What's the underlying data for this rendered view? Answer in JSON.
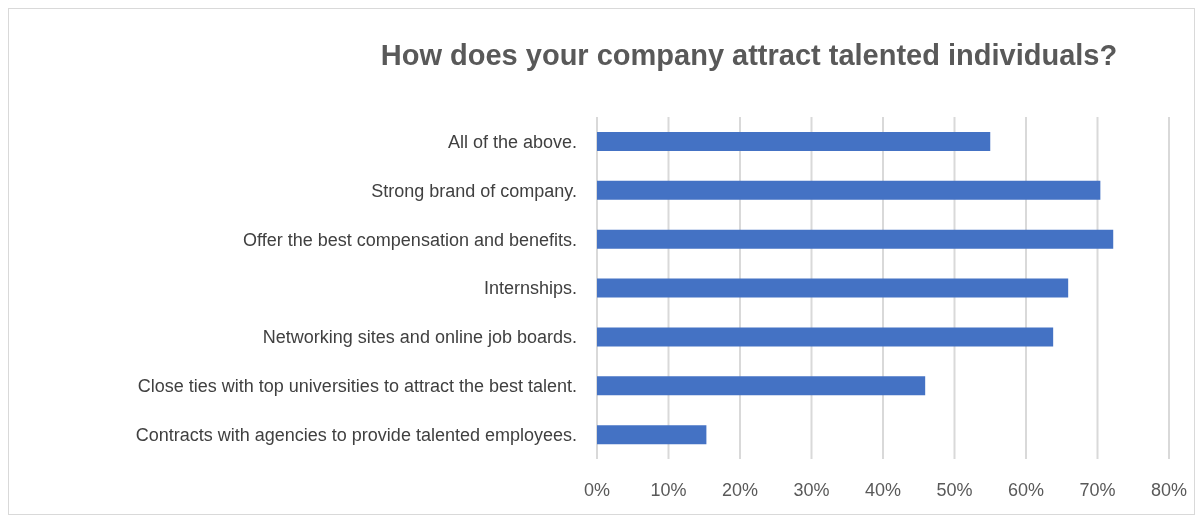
{
  "chart_data": {
    "type": "bar",
    "orientation": "horizontal",
    "title": "How does your company attract talented individuals?",
    "categories": [
      "All of the above.",
      "Strong brand of company.",
      "Offer the best compensation and benefits.",
      "Internships.",
      "Networking sites and online job boards.",
      "Close ties with top universities to attract the best talent.",
      "Contracts with agencies to provide talented employees."
    ],
    "values": [
      55,
      70.4,
      72.2,
      65.9,
      63.8,
      45.9,
      15.3
    ],
    "color": "#4472c4",
    "xlim": [
      0,
      80
    ],
    "xticks": [
      {
        "value": 0,
        "label": "0%"
      },
      {
        "value": 10,
        "label": "10%"
      },
      {
        "value": 20,
        "label": "20%"
      },
      {
        "value": 30,
        "label": "30%"
      },
      {
        "value": 40,
        "label": "40%"
      },
      {
        "value": 50,
        "label": "50%"
      },
      {
        "value": 60,
        "label": "60%"
      },
      {
        "value": 70,
        "label": "70%"
      },
      {
        "value": 80,
        "label": "80%"
      }
    ],
    "grid": "x"
  }
}
